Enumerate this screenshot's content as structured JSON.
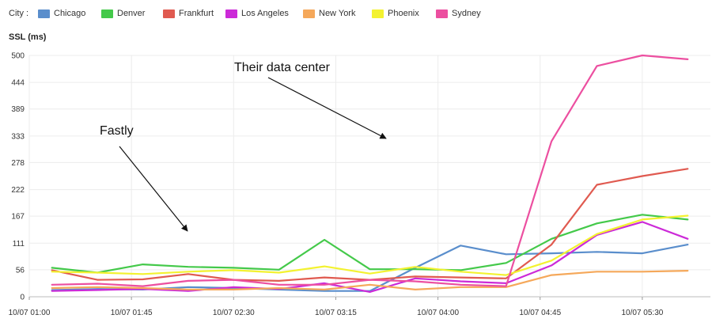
{
  "legend": {
    "label": "City :",
    "items": [
      {
        "name": "Chicago",
        "color": "#5a8ecc"
      },
      {
        "name": "Denver",
        "color": "#44c94a"
      },
      {
        "name": "Frankfurt",
        "color": "#e05a50"
      },
      {
        "name": "Los Angeles",
        "color": "#cc2ad8"
      },
      {
        "name": "New York",
        "color": "#f5a85a"
      },
      {
        "name": "Phoenix",
        "color": "#f3f230"
      },
      {
        "name": "Sydney",
        "color": "#ec4fa0"
      }
    ]
  },
  "chart_data": {
    "type": "line",
    "ylabel": "SSL (ms)",
    "ylim": [
      0,
      500
    ],
    "y_ticks": [
      "0",
      "56",
      "111",
      "167",
      "222",
      "278",
      "333",
      "389",
      "444",
      "500"
    ],
    "x": [
      "10/07 01:00",
      "10/07 01:10",
      "10/07 01:20",
      "10/07 01:30",
      "10/07 01:40",
      "10/07 01:50",
      "10/07 02:00",
      "10/07 02:10",
      "10/07 02:20",
      "10/07 02:30",
      "10/07 02:40",
      "10/07 02:50",
      "10/07 03:00",
      "10/07 03:10",
      "10/07 03:20",
      "10/07 03:30",
      "10/07 03:40",
      "10/07 03:50",
      "10/07 04:00",
      "10/07 04:10",
      "10/07 04:20",
      "10/07 04:30",
      "10/07 04:40",
      "10/07 04:50",
      "10/07 05:00",
      "10/07 05:10",
      "10/07 05:20",
      "10/07 05:30",
      "10/07 05:40",
      "10/07 05:50"
    ],
    "x_ticks": [
      "10/07 01:00",
      "10/07 01:45",
      "10/07 02:30",
      "10/07 03:15",
      "10/07 04:00",
      "10/07 04:45",
      "10/07 05:30"
    ],
    "series": [
      {
        "name": "Chicago",
        "color": "#5a8ecc",
        "values": [
          null,
          14,
          null,
          16,
          null,
          15,
          null,
          20,
          null,
          18,
          null,
          15,
          null,
          12,
          null,
          12,
          null,
          60,
          null,
          106,
          null,
          88,
          null,
          90,
          null,
          93,
          null,
          90,
          null,
          108
        ]
      },
      {
        "name": "Denver",
        "color": "#44c94a",
        "values": [
          null,
          60,
          null,
          50,
          null,
          67,
          null,
          62,
          null,
          60,
          null,
          56,
          null,
          118,
          null,
          57,
          null,
          57,
          null,
          55,
          null,
          70,
          null,
          120,
          null,
          152,
          null,
          170,
          null,
          160
        ]
      },
      {
        "name": "Frankfurt",
        "color": "#e05a50",
        "values": [
          null,
          55,
          null,
          35,
          null,
          36,
          null,
          47,
          null,
          35,
          null,
          33,
          null,
          40,
          null,
          35,
          null,
          42,
          null,
          40,
          null,
          38,
          null,
          108,
          null,
          232,
          null,
          250,
          null,
          265
        ]
      },
      {
        "name": "Los Angeles",
        "color": "#cc2ad8",
        "values": [
          null,
          12,
          null,
          14,
          null,
          16,
          null,
          12,
          null,
          20,
          null,
          16,
          null,
          28,
          null,
          10,
          null,
          38,
          null,
          32,
          null,
          28,
          null,
          65,
          null,
          128,
          null,
          155,
          null,
          120
        ]
      },
      {
        "name": "New York",
        "color": "#f5a85a",
        "values": [
          null,
          18,
          null,
          20,
          null,
          18,
          null,
          15,
          null,
          15,
          null,
          18,
          null,
          15,
          null,
          25,
          null,
          15,
          null,
          20,
          null,
          20,
          null,
          45,
          null,
          52,
          null,
          52,
          null,
          54
        ]
      },
      {
        "name": "Phoenix",
        "color": "#f3f230",
        "values": [
          null,
          52,
          null,
          50,
          null,
          47,
          null,
          52,
          null,
          55,
          null,
          50,
          null,
          63,
          null,
          48,
          null,
          62,
          null,
          52,
          null,
          45,
          null,
          75,
          null,
          130,
          null,
          160,
          null,
          168
        ]
      },
      {
        "name": "Sydney",
        "color": "#ec4fa0",
        "values": [
          null,
          25,
          null,
          27,
          null,
          22,
          null,
          33,
          null,
          35,
          null,
          25,
          null,
          25,
          null,
          35,
          null,
          32,
          null,
          25,
          null,
          22,
          null,
          322,
          null,
          478,
          null,
          500,
          null,
          492
        ]
      }
    ],
    "annotations": [
      {
        "text": "Fastly"
      },
      {
        "text": "Their data center"
      }
    ]
  }
}
